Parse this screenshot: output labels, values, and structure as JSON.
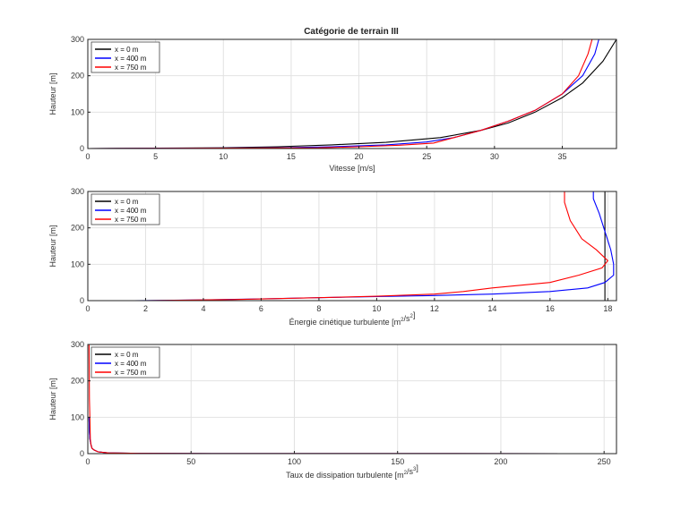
{
  "figure": {
    "title": "Catégorie de terrain III"
  },
  "chart_data": [
    {
      "type": "line",
      "title": "Catégorie de terrain III",
      "xlabel": "Vitesse   [m/s]",
      "ylabel": "Hauteur [m]",
      "xlim": [
        0,
        39
      ],
      "ylim": [
        0,
        300
      ],
      "xticks": [
        0,
        5,
        10,
        15,
        20,
        25,
        30,
        35
      ],
      "yticks": [
        0,
        100,
        200,
        300
      ],
      "grid": true,
      "legend_position": "top-left",
      "series": [
        {
          "name": "x = 0 m",
          "color": "#000000",
          "x": [
            0,
            10,
            14,
            18,
            22,
            26,
            29,
            31,
            33,
            35,
            36.5,
            38,
            39
          ],
          "y": [
            0,
            2,
            5,
            10,
            17,
            30,
            50,
            70,
            100,
            140,
            180,
            240,
            300
          ]
        },
        {
          "name": "x = 400 m",
          "color": "#0000ff",
          "x": [
            0,
            14,
            18,
            22,
            25,
            27,
            29,
            31,
            33,
            35,
            36.5,
            37.4,
            37.7
          ],
          "y": [
            0,
            2,
            5,
            10,
            18,
            30,
            50,
            75,
            105,
            150,
            200,
            260,
            300
          ]
        },
        {
          "name": "x = 750 m",
          "color": "#ff0000",
          "x": [
            0,
            17,
            20,
            23,
            25.5,
            27,
            29,
            31,
            33,
            35,
            36.2,
            36.9,
            37.2
          ],
          "y": [
            0,
            2,
            5,
            9,
            15,
            30,
            50,
            75,
            105,
            150,
            200,
            260,
            300
          ]
        }
      ]
    },
    {
      "type": "line",
      "xlabel": "Énergie cinétique turbulente  [m",
      "xlabel_sup": "2",
      "xlabel_mid": "/s",
      "xlabel_sup2": "2",
      "xlabel_end": "]",
      "ylabel": "Hauteur [m]",
      "xlim": [
        0,
        18.3
      ],
      "ylim": [
        0,
        300
      ],
      "xticks": [
        0,
        2,
        4,
        6,
        8,
        10,
        12,
        14,
        16,
        18
      ],
      "yticks": [
        0,
        100,
        200,
        300
      ],
      "grid": true,
      "legend_position": "top-left",
      "series": [
        {
          "name": "x = 0 m",
          "color": "#000000",
          "x": [
            11,
            17.9,
            17.9
          ],
          "y": [
            0,
            0,
            300
          ]
        },
        {
          "name": "x = 400 m",
          "color": "#0000ff",
          "x": [
            1.6,
            4,
            6,
            8,
            10,
            12,
            14,
            16,
            17.3,
            17.9,
            18.2,
            18.2,
            18.1,
            17.9,
            17.7,
            17.5,
            17.5
          ],
          "y": [
            0,
            2,
            5,
            8,
            11,
            14,
            18,
            25,
            35,
            50,
            70,
            100,
            140,
            190,
            240,
            280,
            300
          ]
        },
        {
          "name": "x = 750 m",
          "color": "#ff0000",
          "x": [
            2,
            5,
            8,
            10,
            12,
            13,
            14,
            16,
            17,
            17.8,
            18.0,
            17.6,
            17.1,
            16.7,
            16.5,
            16.5
          ],
          "y": [
            0,
            3,
            8,
            12,
            18,
            25,
            35,
            50,
            70,
            90,
            110,
            140,
            170,
            220,
            270,
            300
          ]
        }
      ]
    },
    {
      "type": "line",
      "xlabel": "Taux de dissipation turbulente  [m",
      "xlabel_sup": "2",
      "xlabel_mid": "/s",
      "xlabel_sup2": "3",
      "xlabel_end": "]",
      "ylabel": "Hauteur [m]",
      "xlim": [
        0,
        256
      ],
      "ylim": [
        0,
        300
      ],
      "xticks": [
        0,
        50,
        100,
        150,
        200,
        250
      ],
      "yticks": [
        0,
        100,
        200,
        300
      ],
      "grid": true,
      "legend_position": "top-left",
      "series": [
        {
          "name": "x = 0 m",
          "color": "#000000",
          "x": [
            256,
            60,
            25,
            10,
            5,
            3,
            2,
            1.5,
            1,
            0.8,
            0.6
          ],
          "y": [
            0,
            0.3,
            0.8,
            2,
            5,
            10,
            15,
            25,
            40,
            60,
            100
          ]
        },
        {
          "name": "x = 400 m",
          "color": "#0000ff",
          "x": [
            256,
            60,
            25,
            10,
            5,
            3,
            2,
            1.5,
            1,
            0.8,
            0.6
          ],
          "y": [
            0,
            0.3,
            0.8,
            2,
            5,
            10,
            15,
            25,
            40,
            60,
            100
          ]
        },
        {
          "name": "x = 750 m",
          "color": "#ff0000",
          "x": [
            256,
            60,
            25,
            10,
            5,
            3,
            2,
            1.5,
            1.2,
            1,
            0.8,
            0.7,
            0.6
          ],
          "y": [
            0,
            0.3,
            0.8,
            2,
            5,
            10,
            15,
            25,
            40,
            100,
            150,
            220,
            300
          ]
        }
      ]
    }
  ]
}
